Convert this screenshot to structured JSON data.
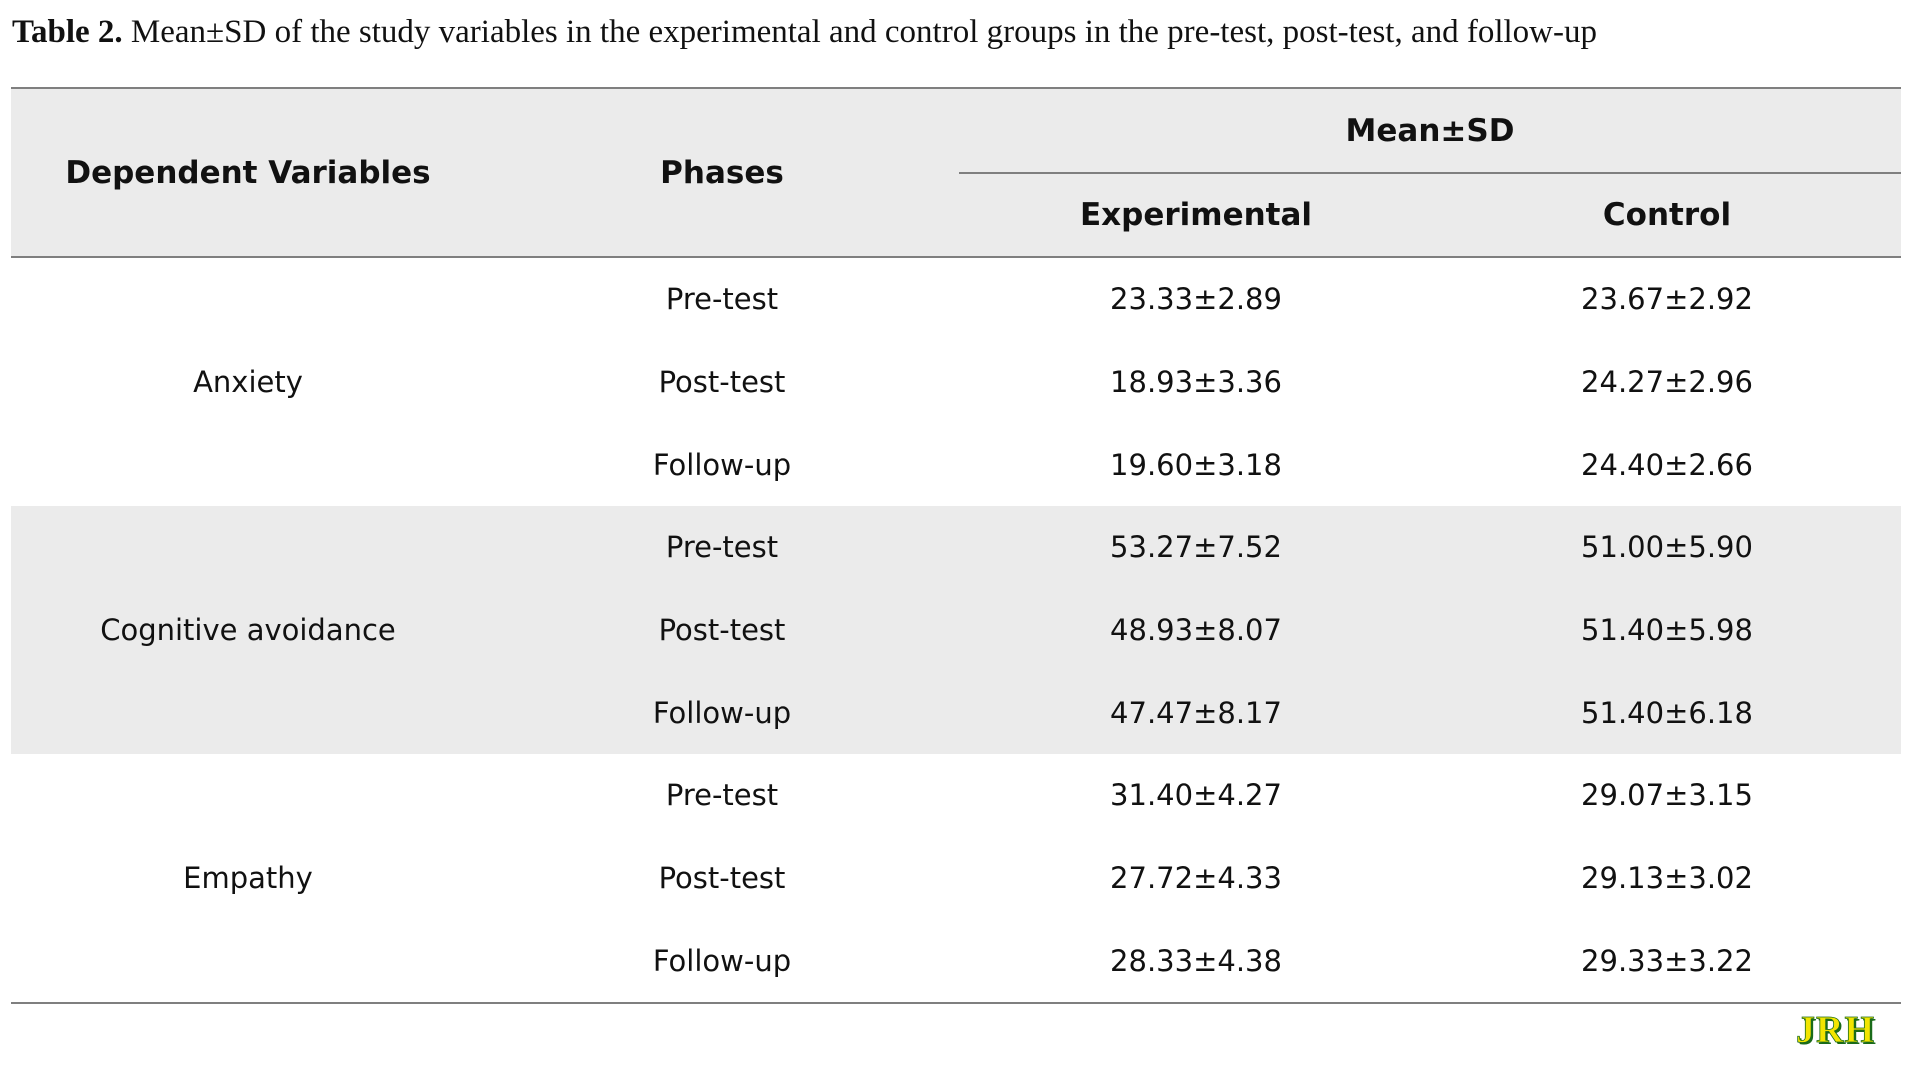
{
  "caption": {
    "label": "Table 2.",
    "text": " Mean±SD of the study variables in the experimental and control groups in the pre-test, post-test, and follow-up"
  },
  "table": {
    "headers": {
      "variables": "Dependent Variables",
      "phases": "Phases",
      "group": "Mean±SD",
      "experimental": "Experimental",
      "control": "Control"
    },
    "groups": [
      {
        "name": "Anxiety",
        "rows": [
          {
            "phase": "Pre-test",
            "experimental": "23.33±2.89",
            "control": "23.67±2.92"
          },
          {
            "phase": "Post-test",
            "experimental": "18.93±3.36",
            "control": "24.27±2.96"
          },
          {
            "phase": "Follow-up",
            "experimental": "19.60±3.18",
            "control": "24.40±2.66"
          }
        ]
      },
      {
        "name": "Cognitive avoidance",
        "rows": [
          {
            "phase": "Pre-test",
            "experimental": "53.27±7.52",
            "control": "51.00±5.90"
          },
          {
            "phase": "Post-test",
            "experimental": "48.93±8.07",
            "control": "51.40±5.98"
          },
          {
            "phase": "Follow-up",
            "experimental": "47.47±8.17",
            "control": "51.40±6.18"
          }
        ]
      },
      {
        "name": "Empathy",
        "rows": [
          {
            "phase": "Pre-test",
            "experimental": "31.40±4.27",
            "control": "29.07±3.15"
          },
          {
            "phase": "Post-test",
            "experimental": "27.72±4.33",
            "control": "29.13±3.02"
          },
          {
            "phase": "Follow-up",
            "experimental": "28.33±4.38",
            "control": "29.33±3.22"
          }
        ]
      }
    ]
  },
  "logo": {
    "text": "JRH",
    "colors": {
      "letters": "#f2e500",
      "shadow": "#1a6b1a"
    }
  }
}
